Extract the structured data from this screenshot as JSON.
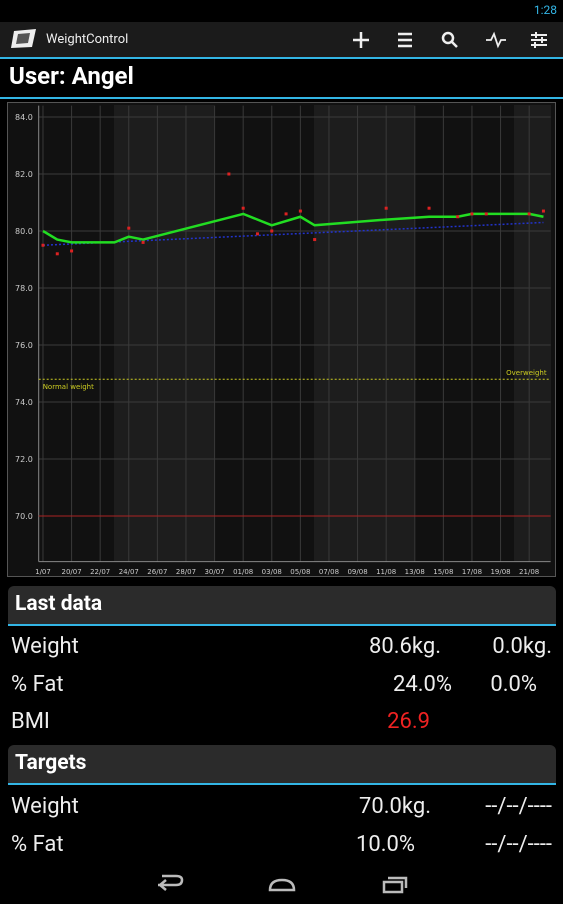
{
  "status_bar": {
    "time": "1:28"
  },
  "action_bar": {
    "title": "WeightControl"
  },
  "user_title": "User: Angel",
  "chart_data": {
    "type": "line",
    "x": [
      0,
      1,
      2,
      5,
      6,
      7,
      14,
      16,
      18,
      19,
      24,
      27,
      29,
      30,
      34,
      35
    ],
    "series": [
      {
        "color": "#22dd22",
        "values": [
          80.0,
          79.7,
          79.6,
          79.6,
          79.8,
          79.7,
          80.6,
          80.2,
          80.5,
          80.2,
          80.4,
          80.5,
          80.5,
          80.6,
          80.6,
          80.5
        ]
      }
    ],
    "trend": {
      "x": [
        0,
        35
      ],
      "values": [
        79.5,
        80.3
      ],
      "color": "#2233cc"
    },
    "points": {
      "x": [
        0,
        1,
        2,
        6,
        7,
        13,
        14,
        15,
        16,
        17,
        18,
        19,
        24,
        27,
        29,
        30,
        31,
        34,
        35
      ],
      "values": [
        79.5,
        79.2,
        79.3,
        80.1,
        79.6,
        82.0,
        80.8,
        79.9,
        80.0,
        80.6,
        80.7,
        79.7,
        80.8,
        80.8,
        80.5,
        80.6,
        80.6,
        80.6,
        80.7
      ],
      "color": "#dd2222"
    },
    "reference_lines": [
      {
        "value": 74.8,
        "color": "#cccc22",
        "labels": [
          "Normal weight",
          "Overweight"
        ]
      },
      {
        "value": 70.0,
        "color": "#aa2222"
      }
    ],
    "xlim": [
      -0.3,
      35.5
    ],
    "xticks": [
      {
        "value": 0,
        "label": "1/07"
      },
      {
        "value": 2,
        "label": "20/07"
      },
      {
        "value": 4,
        "label": "22/07"
      },
      {
        "value": 6,
        "label": "24/07"
      },
      {
        "value": 8,
        "label": "26/07"
      },
      {
        "value": 10,
        "label": "28/07"
      },
      {
        "value": 12,
        "label": "30/07"
      },
      {
        "value": 14,
        "label": "01/08"
      },
      {
        "value": 16,
        "label": "03/08"
      },
      {
        "value": 18,
        "label": "05/08"
      },
      {
        "value": 20,
        "label": "07/08"
      },
      {
        "value": 22,
        "label": "09/08"
      },
      {
        "value": 24,
        "label": "11/08"
      },
      {
        "value": 26,
        "label": "13/08"
      },
      {
        "value": 28,
        "label": "15/08"
      },
      {
        "value": 30,
        "label": "17/08"
      },
      {
        "value": 32,
        "label": "19/08"
      },
      {
        "value": 34,
        "label": "21/08"
      }
    ],
    "ylim": [
      68.4,
      84.4
    ],
    "yticks": [
      {
        "value": 70,
        "label": "70.0"
      },
      {
        "value": 72,
        "label": "72.0"
      },
      {
        "value": 74,
        "label": "74.0"
      },
      {
        "value": 76,
        "label": "76.0"
      },
      {
        "value": 78,
        "label": "78.0"
      },
      {
        "value": 80,
        "label": "80.0"
      },
      {
        "value": 82,
        "label": "82.0"
      },
      {
        "value": 84,
        "label": "84.0"
      }
    ],
    "grid": true
  },
  "last_data": {
    "title": "Last data",
    "rows": [
      [
        "Weight",
        "80.6kg.",
        "0.0kg."
      ],
      [
        "% Fat",
        "24.0%",
        "0.0%"
      ],
      [
        "BMI",
        "26.9"
      ]
    ]
  },
  "targets": {
    "title": "Targets",
    "rows": [
      [
        "Weight",
        "70.0kg.",
        "--/--/----"
      ],
      [
        "% Fat",
        "10.0%",
        "--/--/----"
      ]
    ]
  }
}
